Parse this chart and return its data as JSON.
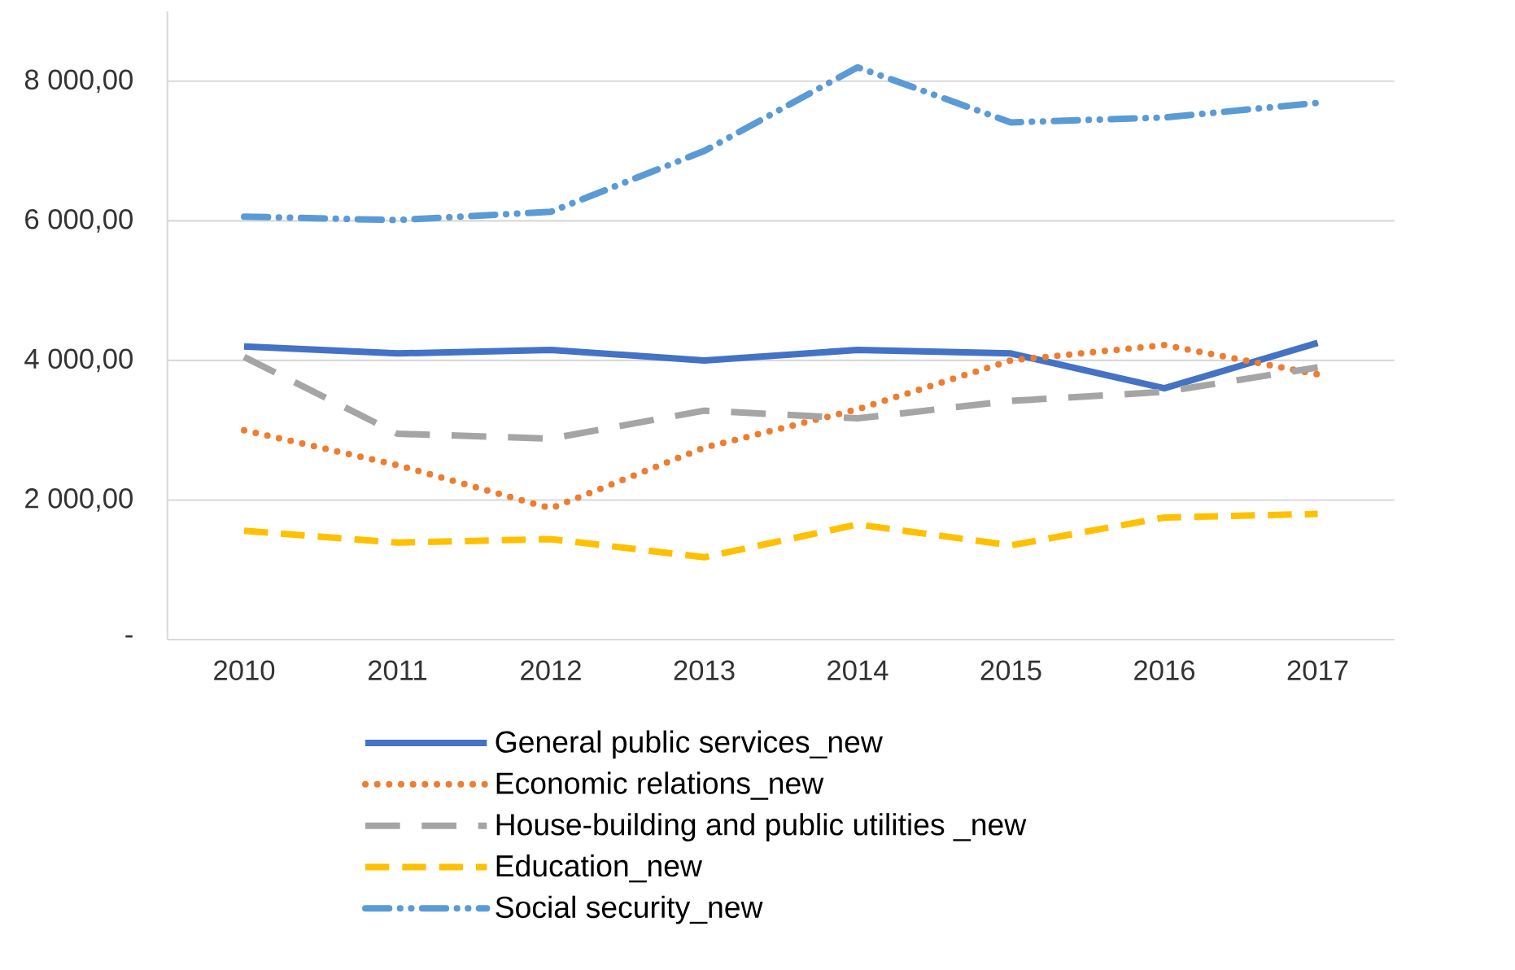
{
  "chart_data": {
    "type": "line",
    "categories": [
      "2010",
      "2011",
      "2012",
      "2013",
      "2014",
      "2015",
      "2016",
      "2017"
    ],
    "ylim": [
      0,
      9000
    ],
    "yticks": [
      {
        "value": 0,
        "label": "-"
      },
      {
        "value": 2000,
        "label": "2 000,00"
      },
      {
        "value": 4000,
        "label": "4 000,00"
      },
      {
        "value": 6000,
        "label": "6 000,00"
      },
      {
        "value": 8000,
        "label": "8 000,00"
      }
    ],
    "grid": "y",
    "legend": "bottom",
    "marker": "none",
    "series": [
      {
        "name": "General public services_new",
        "color": "#4472c4",
        "line_style": "solid",
        "values": [
          4200,
          4100,
          4150,
          4000,
          4150,
          4100,
          3600,
          4250
        ]
      },
      {
        "name": "Economic relations_new",
        "color": "#ed7d31",
        "line_style": "dotted",
        "values": [
          3000,
          2500,
          1880,
          2750,
          3300,
          4000,
          4220,
          3800
        ]
      },
      {
        "name": "House-building and public utilities _new",
        "color": "#a5a5a5",
        "line_style": "dashed",
        "values": [
          4050,
          2950,
          2880,
          3280,
          3170,
          3420,
          3550,
          3900
        ]
      },
      {
        "name": "Education_new",
        "color": "#ffc000",
        "line_style": "dashed",
        "values": [
          1560,
          1390,
          1440,
          1180,
          1650,
          1350,
          1750,
          1800
        ]
      },
      {
        "name": "Social security_new",
        "color": "#5b9bd5",
        "line_style": "dashdot",
        "values": [
          6060,
          6010,
          6130,
          7000,
          8200,
          7410,
          7480,
          7690
        ]
      }
    ]
  }
}
